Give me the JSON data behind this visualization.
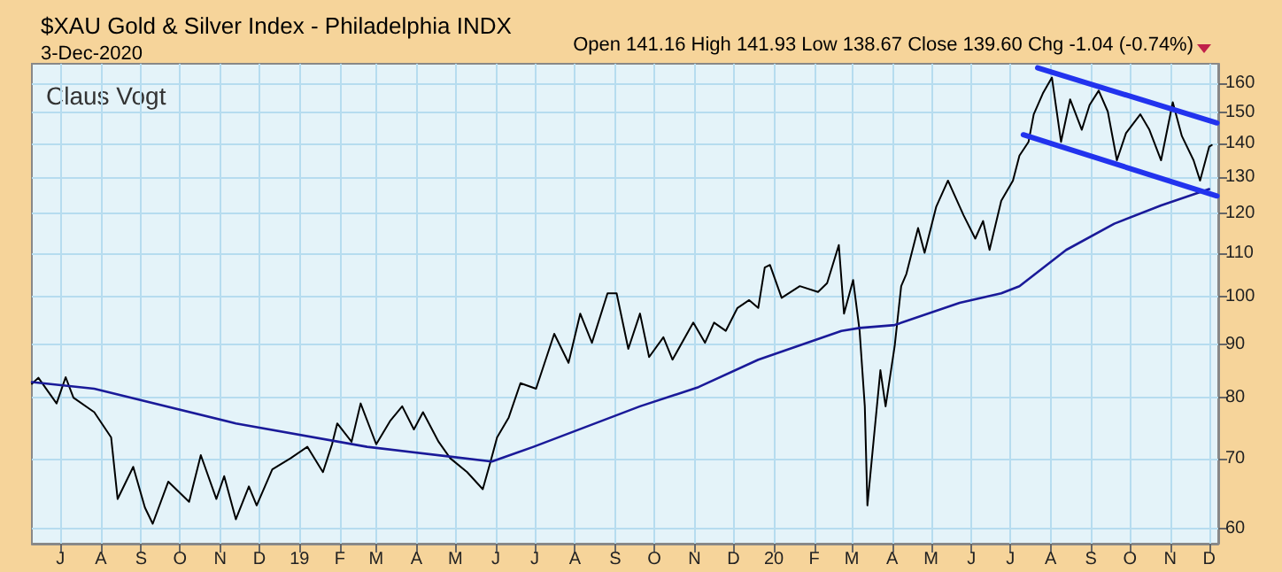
{
  "chart_data": {
    "type": "line",
    "title": "$XAU Gold & Silver Index - Philadelphia INDX",
    "subtitle": "3-Dec-2020",
    "annotations": [
      "Open 141.16 High 141.93 Low 138.67 Close 139.60 Chg -1.04 (-0.74%)",
      "Claus Vogt"
    ],
    "series": [
      {
        "color": "#000000",
        "x": [
          "2018-06-09",
          "2018-06-14",
          "2018-06-28",
          "2018-07-05",
          "2018-07-11",
          "2018-07-27",
          "2018-08-09",
          "2018-08-14",
          "2018-08-26",
          "2018-09-04",
          "2018-09-10",
          "2018-09-22",
          "2018-10-08",
          "2018-10-17",
          "2018-10-29",
          "2018-11-04",
          "2018-11-13",
          "2018-11-23",
          "2018-11-29",
          "2018-12-11",
          "2018-12-25",
          "2019-01-07",
          "2019-01-19",
          "2019-01-26",
          "2019-01-30",
          "2019-02-10",
          "2019-02-17",
          "2019-03-01",
          "2019-03-12",
          "2019-03-21",
          "2019-03-30",
          "2019-04-06",
          "2019-04-18",
          "2019-04-27",
          "2019-05-10",
          "2019-05-22",
          "2019-05-28",
          "2019-06-02",
          "2019-06-11",
          "2019-06-20",
          "2019-07-02",
          "2019-07-16",
          "2019-07-27",
          "2019-08-05",
          "2019-08-14",
          "2019-08-26",
          "2019-09-02",
          "2019-09-11",
          "2019-09-20",
          "2019-09-27",
          "2019-10-08",
          "2019-10-15",
          "2019-10-31",
          "2019-11-09",
          "2019-11-16",
          "2019-11-25",
          "2019-12-04",
          "2019-12-13",
          "2019-12-20",
          "2019-12-25",
          "2019-12-29",
          "2020-01-07",
          "2020-01-21",
          "2020-02-04",
          "2020-02-11",
          "2020-02-20",
          "2020-02-24",
          "2020-03-02",
          "2020-03-07",
          "2020-03-11",
          "2020-03-13",
          "2020-03-18",
          "2020-03-23",
          "2020-03-27",
          "2020-04-03",
          "2020-04-08",
          "2020-04-12",
          "2020-04-21",
          "2020-04-26",
          "2020-05-05",
          "2020-05-14",
          "2020-05-26",
          "2020-06-04",
          "2020-06-10",
          "2020-06-15",
          "2020-06-24",
          "2020-07-03",
          "2020-07-08",
          "2020-07-15",
          "2020-07-19",
          "2020-07-26",
          "2020-08-02",
          "2020-08-09",
          "2020-08-16",
          "2020-08-25",
          "2020-08-31",
          "2020-09-07",
          "2020-09-14",
          "2020-09-21",
          "2020-09-28",
          "2020-10-09",
          "2020-10-16",
          "2020-10-25",
          "2020-11-03",
          "2020-11-10",
          "2020-11-19",
          "2020-11-24",
          "2020-12-01",
          "2020-12-03"
        ],
        "values": [
          82.5,
          83.6,
          79,
          83.7,
          80,
          77.5,
          73.3,
          64,
          68.7,
          62.8,
          60.6,
          66.5,
          63.6,
          70.5,
          64,
          67.3,
          61.2,
          65.8,
          63.1,
          68.3,
          70,
          71.8,
          67.9,
          72.2,
          75.6,
          72.6,
          79,
          72.2,
          76.1,
          78.5,
          74.6,
          77.5,
          72.6,
          70,
          67.9,
          65.4,
          69.5,
          73.3,
          76.6,
          82.6,
          81.6,
          92.1,
          86.4,
          96.3,
          90.3,
          100.7,
          100.7,
          89.1,
          96.3,
          87.5,
          91.4,
          87,
          94.4,
          90.3,
          94.4,
          92.7,
          97.5,
          99.2,
          97.5,
          106.6,
          107.2,
          99.7,
          102.3,
          101,
          103,
          112,
          96.3,
          103.7,
          92.7,
          78.5,
          63.1,
          73.3,
          85,
          78.5,
          89.7,
          102.3,
          105.1,
          116.3,
          110.1,
          121.9,
          129.1,
          119.6,
          113.6,
          118.1,
          110.8,
          123.5,
          129.1,
          136.4,
          140.6,
          149.4,
          156.4,
          162,
          140.6,
          154.4,
          144.4,
          152.5,
          157.4,
          150.3,
          135,
          143.3,
          149.4,
          144.4,
          135,
          153.4,
          142.4,
          135,
          129.1,
          139.1,
          139.6
        ]
      },
      {
        "color": "#1a1a99",
        "x": [
          "2018-06-09",
          "2018-07-27",
          "2018-11-13",
          "2019-02-22",
          "2019-05-29",
          "2019-06-30",
          "2019-09-20",
          "2019-11-04",
          "2019-12-20",
          "2020-02-22",
          "2020-03-07",
          "2020-04-03",
          "2020-05-23",
          "2020-06-24",
          "2020-07-08",
          "2020-08-13",
          "2020-09-19",
          "2020-10-25",
          "2020-12-01"
        ],
        "values": [
          82.8,
          81.6,
          75.6,
          71.8,
          69.5,
          71.8,
          78.5,
          81.9,
          87,
          92.7,
          93.3,
          93.9,
          98.6,
          100.7,
          102.3,
          110.8,
          117.4,
          122.2,
          126.7
        ]
      },
      {
        "color": "#2233ee",
        "x": [
          "2020-07-22",
          "2020-12-07"
        ],
        "values": [
          165.5,
          146.6
        ]
      },
      {
        "color": "#2233ee",
        "x": [
          "2020-07-11",
          "2020-12-07"
        ],
        "values": [
          142.8,
          124.8
        ]
      }
    ],
    "xlim": [
      "2018-06-09",
      "2020-12-08"
    ],
    "xticks": [
      {
        "value": "2018-07-01",
        "label": "J"
      },
      {
        "value": "2018-08-01",
        "label": "A"
      },
      {
        "value": "2018-09-01",
        "label": "S"
      },
      {
        "value": "2018-10-01",
        "label": "O"
      },
      {
        "value": "2018-11-01",
        "label": "N"
      },
      {
        "value": "2018-12-01",
        "label": "D"
      },
      {
        "value": "2019-01-01",
        "label": "19"
      },
      {
        "value": "2019-02-01",
        "label": "F"
      },
      {
        "value": "2019-03-01",
        "label": "M"
      },
      {
        "value": "2019-04-01",
        "label": "A"
      },
      {
        "value": "2019-05-01",
        "label": "M"
      },
      {
        "value": "2019-06-01",
        "label": "J"
      },
      {
        "value": "2019-07-01",
        "label": "J"
      },
      {
        "value": "2019-08-01",
        "label": "A"
      },
      {
        "value": "2019-09-01",
        "label": "S"
      },
      {
        "value": "2019-10-01",
        "label": "O"
      },
      {
        "value": "2019-11-01",
        "label": "N"
      },
      {
        "value": "2019-12-01",
        "label": "D"
      },
      {
        "value": "2020-01-01",
        "label": "20"
      },
      {
        "value": "2020-02-01",
        "label": "F"
      },
      {
        "value": "2020-03-01",
        "label": "M"
      },
      {
        "value": "2020-04-01",
        "label": "A"
      },
      {
        "value": "2020-05-01",
        "label": "M"
      },
      {
        "value": "2020-06-01",
        "label": "J"
      },
      {
        "value": "2020-07-01",
        "label": "J"
      },
      {
        "value": "2020-08-01",
        "label": "A"
      },
      {
        "value": "2020-09-01",
        "label": "S"
      },
      {
        "value": "2020-10-01",
        "label": "O"
      },
      {
        "value": "2020-11-01",
        "label": "N"
      },
      {
        "value": "2020-12-01",
        "label": "D"
      }
    ],
    "ylim": [
      58,
      167
    ],
    "yticks": [
      60,
      70,
      80,
      90,
      100,
      110,
      120,
      130,
      140,
      150,
      160
    ],
    "log": true,
    "grid": true,
    "marker": "none"
  }
}
